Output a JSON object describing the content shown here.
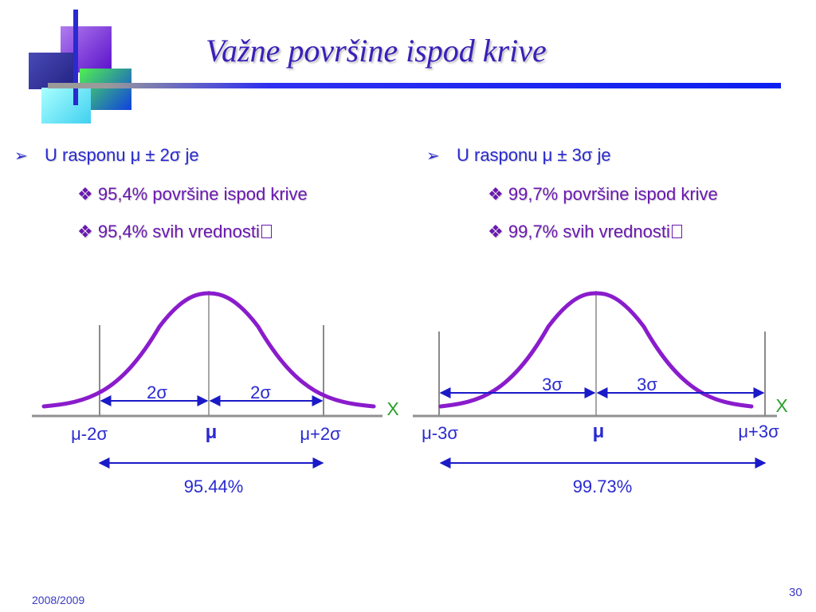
{
  "slide": {
    "title": "Važne površine ispod krive",
    "footer_date": "2008/2009",
    "page_number": "30"
  },
  "left_bullets": {
    "marker": "➢",
    "heading": "U rasponu μ ± 2σ  je",
    "items": [
      {
        "marker": "❖",
        "text": "95,4% površine ispod krive"
      },
      {
        "marker": "❖",
        "text": "95,4% svih vrednosti"
      }
    ]
  },
  "right_bullets": {
    "marker": "➢",
    "heading": "U rasponu μ ± 3σ  je",
    "items": [
      {
        "marker": "❖",
        "text": "99,7% površine ispod krive"
      },
      {
        "marker": "❖",
        "text": "99,7% svih vrednosti"
      }
    ]
  },
  "diagrams": [
    {
      "span_left_label": "2σ",
      "span_right_label": "2σ",
      "axis_x_label": "X",
      "left_bound_label": "μ-2σ",
      "mean_label": "μ",
      "right_bound_label": "μ+2σ",
      "percent_label": "95.44%"
    },
    {
      "span_left_label": "3σ",
      "span_right_label": "3σ",
      "axis_x_label": "X",
      "left_bound_label": "μ-3σ",
      "mean_label": "μ",
      "right_bound_label": "μ+3σ",
      "percent_label": "99.73%"
    }
  ],
  "colors": {
    "title": "#3a1fb8",
    "curve": "#8a1ccc",
    "arrows": "#1a1ac8",
    "axis_label": "#2aa02a",
    "text_blue": "#2a2ad0",
    "text_purple": "#6a18b0"
  }
}
